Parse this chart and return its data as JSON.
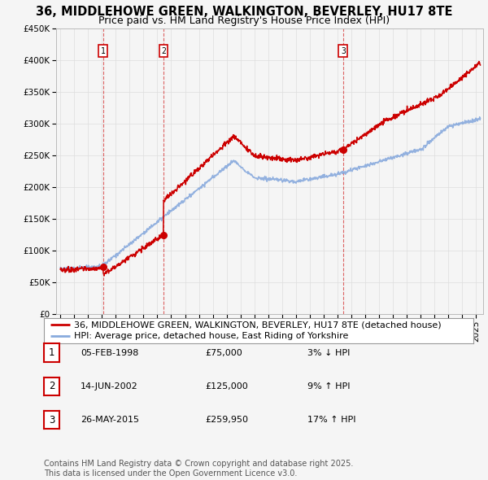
{
  "title": "36, MIDDLEHOWE GREEN, WALKINGTON, BEVERLEY, HU17 8TE",
  "subtitle": "Price paid vs. HM Land Registry's House Price Index (HPI)",
  "legend_property": "36, MIDDLEHOWE GREEN, WALKINGTON, BEVERLEY, HU17 8TE (detached house)",
  "legend_hpi": "HPI: Average price, detached house, East Riding of Yorkshire",
  "sale_dates_label": [
    "05-FEB-1998",
    "14-JUN-2002",
    "26-MAY-2015"
  ],
  "sale_prices_label": [
    "£75,000",
    "£125,000",
    "£259,950"
  ],
  "sale_pct_label": [
    "3% ↓ HPI",
    "9% ↑ HPI",
    "17% ↑ HPI"
  ],
  "sale_years": [
    1998.09,
    2002.45,
    2015.4
  ],
  "sale_prices": [
    75000,
    125000,
    259950
  ],
  "property_color": "#cc0000",
  "hpi_color": "#88aadd",
  "background_color": "#f5f5f5",
  "grid_color": "#dddddd",
  "ylim": [
    0,
    450000
  ],
  "xlim_start": 1994.7,
  "xlim_end": 2025.5,
  "footer": "Contains HM Land Registry data © Crown copyright and database right 2025.\nThis data is licensed under the Open Government Licence v3.0.",
  "title_fontsize": 10.5,
  "subtitle_fontsize": 9,
  "tick_fontsize": 7.5,
  "legend_fontsize": 8,
  "table_fontsize": 8,
  "footer_fontsize": 7
}
